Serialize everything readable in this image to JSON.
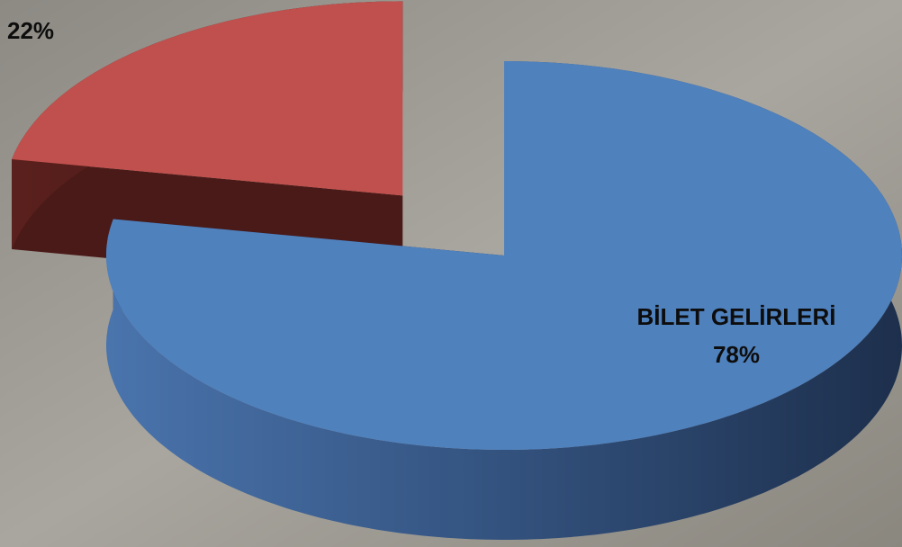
{
  "chart_data": {
    "type": "pie",
    "categories": [
      "BİLET GELİRLERİ",
      null
    ],
    "values": [
      78,
      22
    ],
    "value_labels": [
      "78%",
      "22%"
    ],
    "colors": [
      "#4f81bd",
      "#c0504d"
    ]
  }
}
